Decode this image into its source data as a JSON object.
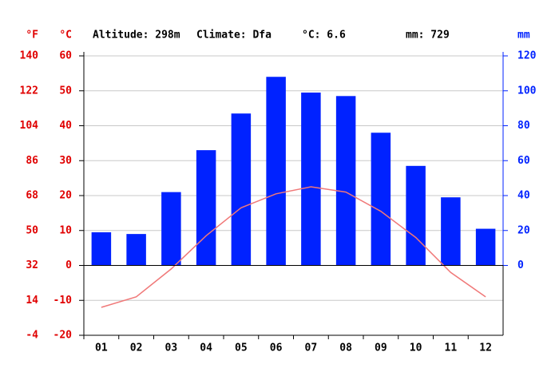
{
  "chart_data": {
    "type": "climate",
    "header": [
      "Altitude: 298m",
      "Climate: Dfa",
      "°C: 6.6",
      "mm: 729"
    ],
    "y_f_label": "°F",
    "y_label": "°C",
    "y2_label": "mm",
    "categories": [
      "01",
      "02",
      "03",
      "04",
      "05",
      "06",
      "07",
      "08",
      "09",
      "10",
      "11",
      "12"
    ],
    "series": [
      {
        "name": "mm",
        "type": "bar",
        "axis": "y2",
        "color": "#0022ff",
        "values": [
          19,
          18,
          42,
          66,
          87,
          108,
          99,
          97,
          76,
          57,
          39,
          21
        ]
      },
      {
        "name": "°C",
        "type": "line",
        "color": "#f07878",
        "values": [
          -12,
          -9,
          -1,
          8.5,
          16.5,
          20.5,
          22.5,
          21,
          15.5,
          8,
          -2,
          -9
        ]
      }
    ],
    "ylim": [
      -20,
      60
    ],
    "yticks": [
      -20,
      -10,
      0,
      10,
      20,
      30,
      40,
      50,
      60
    ],
    "y2lim": [
      -40,
      120
    ],
    "y2ticks": [
      0,
      20,
      40,
      60,
      80,
      100,
      120
    ],
    "y_f_lim": [
      -4,
      140
    ],
    "y_f_ticks": [
      -4,
      14,
      32,
      50,
      68,
      86,
      104,
      122,
      140
    ],
    "grid": true
  }
}
